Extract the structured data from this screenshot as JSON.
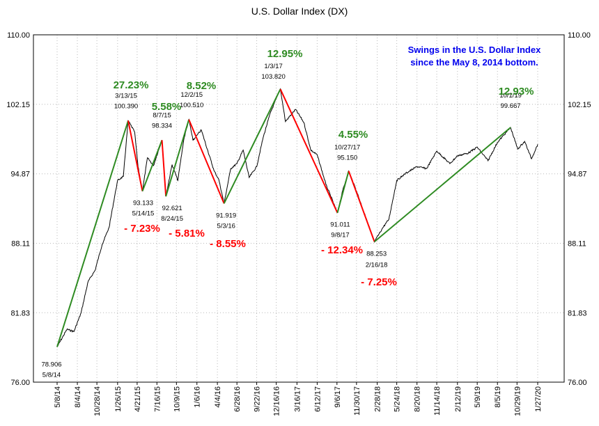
{
  "chart_data": {
    "type": "line",
    "title": "U.S. Dollar Index (DX)",
    "xlabel": "",
    "ylabel": "",
    "ylim": [
      76.0,
      110.0
    ],
    "y_ticks": [
      "76.00",
      "81.83",
      "88.11",
      "94.87",
      "102.15",
      "110.00"
    ],
    "x_ticks": [
      "5/8/14",
      "8/4/14",
      "10/28/14",
      "1/26/15",
      "4/21/15",
      "7/16/15",
      "10/9/15",
      "1/6/16",
      "4/4/16",
      "6/28/16",
      "9/22/16",
      "12/16/16",
      "3/16/17",
      "6/12/17",
      "9/6/17",
      "11/30/17",
      "2/28/18",
      "5/24/18",
      "8/20/18",
      "11/14/18",
      "2/12/19",
      "5/9/19",
      "8/5/19",
      "10/29/19",
      "1/27/20"
    ],
    "grid": true,
    "note": {
      "line1": "Swings in the U.S. Dollar Index",
      "line2": "since the May 8, 2014 bottom.",
      "color": "#0000ee"
    },
    "colors": {
      "up": "#2e8b22",
      "down": "#ff0000",
      "price": "#000000"
    },
    "pivots": [
      {
        "date": "5/8/14",
        "value": 78.906,
        "value_label": "78.906",
        "date_label": "5/8/14"
      },
      {
        "date": "3/13/15",
        "value": 100.39,
        "value_label": "100.390",
        "date_label": "3/13/15"
      },
      {
        "date": "5/14/15",
        "value": 93.133,
        "value_label": "93.133",
        "date_label": "5/14/15"
      },
      {
        "date": "8/7/15",
        "value": 98.334,
        "value_label": "98.334",
        "date_label": "8/7/15"
      },
      {
        "date": "8/24/15",
        "value": 92.621,
        "value_label": "92.621",
        "date_label": "8/24/15"
      },
      {
        "date": "12/2/15",
        "value": 100.51,
        "value_label": "100.510",
        "date_label": "12/2/15"
      },
      {
        "date": "5/3/16",
        "value": 91.919,
        "value_label": "91.919",
        "date_label": "5/3/16"
      },
      {
        "date": "1/3/17",
        "value": 103.82,
        "value_label": "103.820",
        "date_label": "1/3/17"
      },
      {
        "date": "9/8/17",
        "value": 91.011,
        "value_label": "91.011",
        "date_label": "9/8/17"
      },
      {
        "date": "10/27/17",
        "value": 95.15,
        "value_label": "95.150",
        "date_label": "10/27/17"
      },
      {
        "date": "2/16/18",
        "value": 88.253,
        "value_label": "88.253",
        "date_label": "2/16/18"
      },
      {
        "date": "10/1/19",
        "value": 99.667,
        "value_label": "99.667",
        "date_label": "10/1/19"
      }
    ],
    "swings": [
      {
        "from": "5/8/14",
        "to": "3/13/15",
        "direction": "up",
        "pct": "27.23%"
      },
      {
        "from": "3/13/15",
        "to": "5/14/15",
        "direction": "down",
        "pct": "- 7.23%"
      },
      {
        "from": "5/14/15",
        "to": "8/7/15",
        "direction": "up",
        "pct": "5.58%"
      },
      {
        "from": "8/7/15",
        "to": "8/24/15",
        "direction": "down",
        "pct": "- 5.81%"
      },
      {
        "from": "8/24/15",
        "to": "12/2/15",
        "direction": "up",
        "pct": "8.52%"
      },
      {
        "from": "12/2/15",
        "to": "5/3/16",
        "direction": "down",
        "pct": "- 8.55%"
      },
      {
        "from": "5/3/16",
        "to": "1/3/17",
        "direction": "up",
        "pct": "12.95%"
      },
      {
        "from": "1/3/17",
        "to": "9/8/17",
        "direction": "down",
        "pct": "- 12.34%"
      },
      {
        "from": "9/8/17",
        "to": "10/27/17",
        "direction": "up",
        "pct": "4.55%"
      },
      {
        "from": "10/27/17",
        "to": "2/16/18",
        "direction": "down",
        "pct": "- 7.25%"
      },
      {
        "from": "2/16/18",
        "to": "10/1/19",
        "direction": "up",
        "pct": "12.93%"
      }
    ],
    "price_path": [
      [
        "5/8/14",
        78.9
      ],
      [
        "6/20/14",
        80.4
      ],
      [
        "7/20/14",
        80.2
      ],
      [
        "8/20/14",
        81.8
      ],
      [
        "9/20/14",
        84.6
      ],
      [
        "10/20/14",
        85.6
      ],
      [
        "11/20/14",
        88.0
      ],
      [
        "12/20/14",
        89.6
      ],
      [
        "1/26/15",
        94.2
      ],
      [
        "2/20/15",
        94.6
      ],
      [
        "3/13/15",
        100.39
      ],
      [
        "4/10/15",
        99.2
      ],
      [
        "4/25/15",
        95.6
      ],
      [
        "5/14/15",
        93.13
      ],
      [
        "6/5/15",
        96.5
      ],
      [
        "7/1/15",
        95.7
      ],
      [
        "8/7/15",
        98.33
      ],
      [
        "8/24/15",
        92.62
      ],
      [
        "9/20/15",
        95.8
      ],
      [
        "10/15/15",
        94.2
      ],
      [
        "11/10/15",
        98.4
      ],
      [
        "12/2/15",
        100.51
      ],
      [
        "12/20/15",
        98.3
      ],
      [
        "1/25/16",
        99.4
      ],
      [
        "2/20/16",
        97.4
      ],
      [
        "3/20/16",
        95.2
      ],
      [
        "4/10/16",
        94.3
      ],
      [
        "5/3/16",
        91.92
      ],
      [
        "6/1/16",
        95.4
      ],
      [
        "6/28/16",
        95.9
      ],
      [
        "7/25/16",
        97.3
      ],
      [
        "8/20/16",
        94.5
      ],
      [
        "9/22/16",
        95.6
      ],
      [
        "10/20/16",
        98.6
      ],
      [
        "11/20/16",
        101.2
      ],
      [
        "1/3/17",
        103.82
      ],
      [
        "1/25/17",
        100.3
      ],
      [
        "3/10/17",
        101.6
      ],
      [
        "4/15/17",
        100.2
      ],
      [
        "5/15/17",
        97.3
      ],
      [
        "6/12/17",
        96.8
      ],
      [
        "7/20/17",
        93.8
      ],
      [
        "9/8/17",
        91.01
      ],
      [
        "10/1/17",
        93.2
      ],
      [
        "10/27/17",
        95.15
      ],
      [
        "12/1/17",
        93.1
      ],
      [
        "1/15/18",
        90.2
      ],
      [
        "2/16/18",
        88.25
      ],
      [
        "3/25/18",
        89.6
      ],
      [
        "4/20/18",
        90.4
      ],
      [
        "5/24/18",
        94.2
      ],
      [
        "7/1/18",
        94.9
      ],
      [
        "8/20/18",
        95.6
      ],
      [
        "10/1/18",
        95.4
      ],
      [
        "11/14/18",
        97.2
      ],
      [
        "1/10/19",
        95.9
      ],
      [
        "2/12/19",
        96.7
      ],
      [
        "4/1/19",
        97.0
      ],
      [
        "5/9/19",
        97.6
      ],
      [
        "6/25/19",
        96.2
      ],
      [
        "8/5/19",
        98.1
      ],
      [
        "10/1/19",
        99.67
      ],
      [
        "11/1/19",
        97.4
      ],
      [
        "12/1/19",
        98.2
      ],
      [
        "12/31/19",
        96.4
      ],
      [
        "1/27/20",
        97.9
      ]
    ]
  }
}
